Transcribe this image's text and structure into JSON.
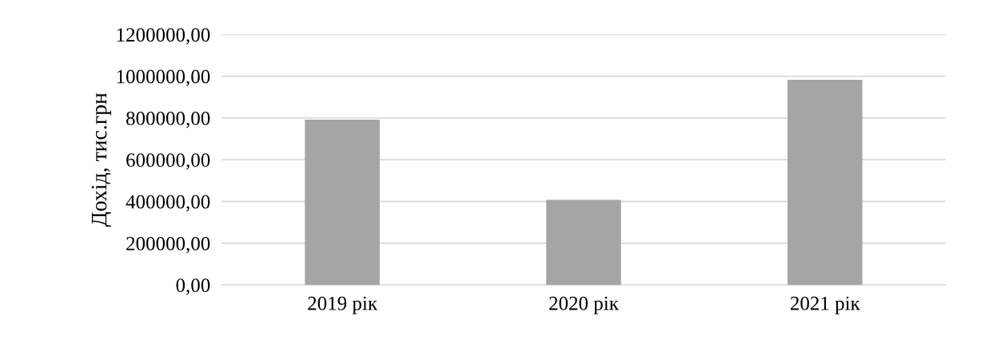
{
  "chart_data": {
    "type": "bar",
    "ylabel": "Дохід, тис.грн",
    "categories": [
      "2019 рік",
      "2020 рік",
      "2021 рік"
    ],
    "values": [
      792000,
      408000,
      983000
    ],
    "color": "#a5a5a5",
    "ylim": [
      0,
      1200000
    ],
    "yticks": [
      {
        "value": 0,
        "label": "0,00"
      },
      {
        "value": 200000,
        "label": "200000,00"
      },
      {
        "value": 400000,
        "label": "400000,00"
      },
      {
        "value": 600000,
        "label": "600000,00"
      },
      {
        "value": 800000,
        "label": "800000,00"
      },
      {
        "value": 1000000,
        "label": "1000000,00"
      },
      {
        "value": 1200000,
        "label": "1200000,00"
      }
    ],
    "grid": "y"
  }
}
